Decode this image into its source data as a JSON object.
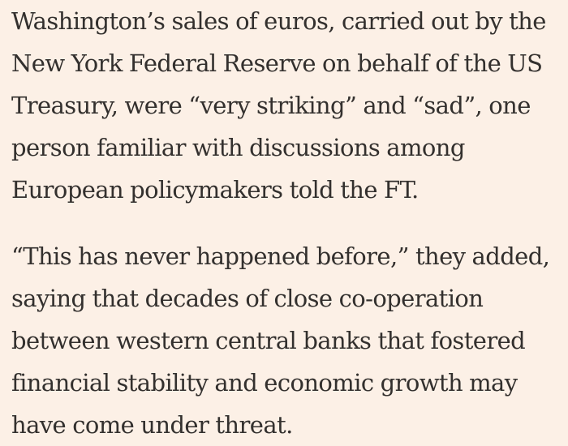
{
  "article": {
    "paragraphs": [
      {
        "lines": [
          "Washington’s sales of euros, carried out by the",
          "New York Federal Reserve on behalf of the US",
          "Treasury, were “very striking” and “sad”, one",
          "person familiar with discussions among",
          "European policymakers told the FT."
        ]
      },
      {
        "lines": [
          "“This has never happened before,” they added,",
          "saying that decades of close co-operation",
          "between western central banks that fostered",
          "financial stability and economic growth may",
          "have come under threat."
        ]
      }
    ]
  }
}
